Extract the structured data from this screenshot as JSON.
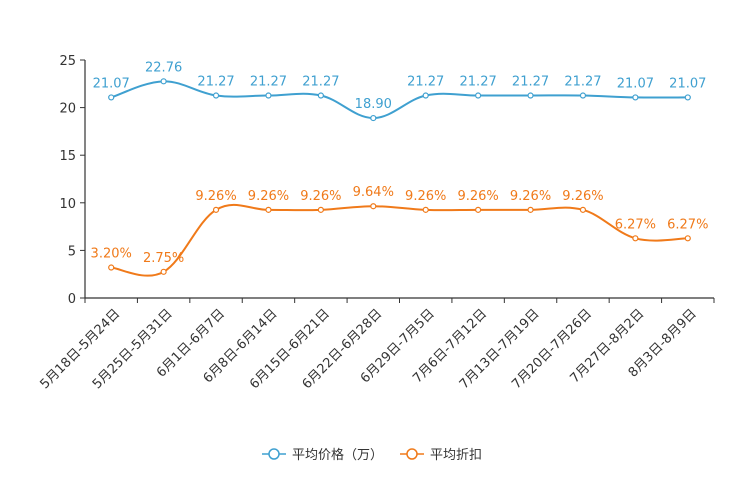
{
  "chart_data": {
    "type": "line",
    "categories": [
      "5月18日-5月24日",
      "5月25日-5月31日",
      "6月1日-6月7日",
      "6月8日-6月14日",
      "6月15日-6月21日",
      "6月22日-6月28日",
      "6月29日-7月5日",
      "7月6日-7月12日",
      "7月13日-7月19日",
      "7月20日-7月26日",
      "7月27日-8月2日",
      "8月3日-8月9日"
    ],
    "series": [
      {
        "name": "平均价格（万）",
        "color": "#3fa0d0",
        "values": [
          21.07,
          22.76,
          21.27,
          21.27,
          21.27,
          18.9,
          21.27,
          21.27,
          21.27,
          21.27,
          21.07,
          21.07
        ],
        "labels": [
          "21.07",
          "22.76",
          "21.27",
          "21.27",
          "21.27",
          "18.90",
          "21.27",
          "21.27",
          "21.27",
          "21.27",
          "21.07",
          "21.07"
        ]
      },
      {
        "name": "平均折扣",
        "color": "#f07a1a",
        "values": [
          3.2,
          2.75,
          9.26,
          9.26,
          9.26,
          9.64,
          9.26,
          9.26,
          9.26,
          9.26,
          6.27,
          6.27
        ],
        "labels": [
          "3.20%",
          "2.75%",
          "9.26%",
          "9.26%",
          "9.26%",
          "9.64%",
          "9.26%",
          "9.26%",
          "9.26%",
          "9.26%",
          "6.27%",
          "6.27%"
        ]
      }
    ],
    "yticks": [
      "0",
      "5",
      "10",
      "15",
      "20",
      "25"
    ],
    "ylim": [
      0,
      25
    ],
    "grid": false,
    "legend_position": "bottom-center"
  }
}
